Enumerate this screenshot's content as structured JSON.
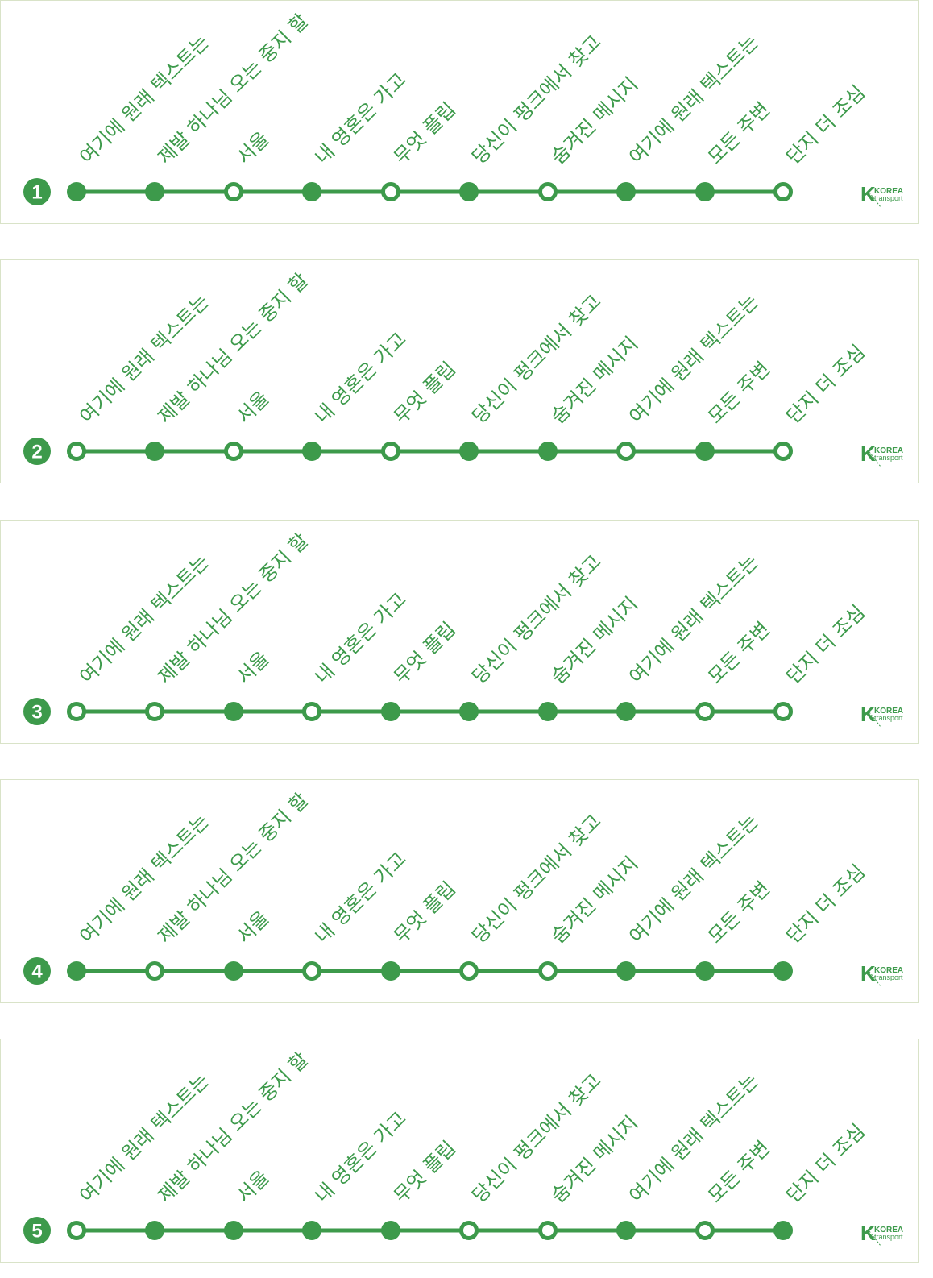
{
  "colors": {
    "line": "#3d9a4b",
    "panel_border": "#d9e3c8",
    "background": "#ffffff"
  },
  "stations": [
    "여기에 원래 텍스트는",
    "제발 하나님 오는 중지 할",
    "서울",
    "내 영혼은 가고",
    "무엇 플립",
    "당신이 펑크에서 찾고",
    "숨겨진 메시지",
    "여기에 원래 텍스트는",
    "모든 주변",
    "단지 더 조심"
  ],
  "logo": {
    "mark": "K",
    "line1": "KOREA",
    "line2": "transport"
  },
  "lines": [
    {
      "number": "1",
      "stops_filled": [
        true,
        true,
        false,
        true,
        false,
        true,
        false,
        true,
        true,
        false
      ]
    },
    {
      "number": "2",
      "stops_filled": [
        false,
        true,
        false,
        true,
        false,
        true,
        true,
        false,
        true,
        false
      ]
    },
    {
      "number": "3",
      "stops_filled": [
        false,
        false,
        true,
        false,
        true,
        true,
        true,
        true,
        false,
        false
      ]
    },
    {
      "number": "4",
      "stops_filled": [
        true,
        false,
        true,
        false,
        true,
        false,
        false,
        true,
        true,
        true
      ]
    },
    {
      "number": "5",
      "stops_filled": [
        false,
        true,
        true,
        true,
        true,
        false,
        false,
        true,
        false,
        true
      ]
    }
  ]
}
